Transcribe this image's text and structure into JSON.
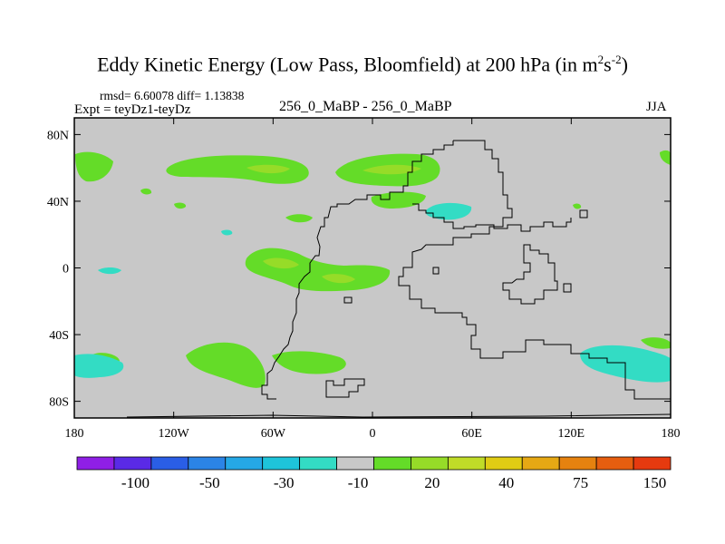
{
  "title": {
    "main": "Eddy Kinetic Energy (Low Pass, Bloomfield) at 200 hPa (in m",
    "sup1": "2",
    "mid": "s",
    "sup2": "-2",
    "close": ")"
  },
  "stats": "rmsd= 6.60078 diff= 1.13838",
  "expt_label": "Expt = teyDz1-teyDz",
  "subtitle": "256_0_MaBP - 256_0_MaBP",
  "season": "JJA",
  "chart_data": {
    "type": "contour-map",
    "title": "Eddy Kinetic Energy (Low Pass, Bloomfield) at 200 hPa (in m2s-2)",
    "xlim": [
      -180,
      180
    ],
    "ylim": [
      -90,
      90
    ],
    "x_ticks": [
      {
        "value": -180,
        "label": "180"
      },
      {
        "value": -120,
        "label": "120W"
      },
      {
        "value": -60,
        "label": "60W"
      },
      {
        "value": 0,
        "label": "0"
      },
      {
        "value": 60,
        "label": "60E"
      },
      {
        "value": 120,
        "label": "120E"
      },
      {
        "value": 180,
        "label": "180"
      }
    ],
    "y_ticks": [
      {
        "value": 80,
        "label": "80N"
      },
      {
        "value": 40,
        "label": "40N"
      },
      {
        "value": 0,
        "label": "0"
      },
      {
        "value": -40,
        "label": "40S"
      },
      {
        "value": -80,
        "label": "80S"
      }
    ],
    "colorbar": {
      "colors": [
        "#8f1fe6",
        "#5a2ae6",
        "#2a5ee6",
        "#2b84e6",
        "#25a8e6",
        "#1ec4da",
        "#33dcc4",
        "#c8c8c8",
        "#64dc28",
        "#96dc28",
        "#c0dc28",
        "#e0cc14",
        "#e6a814",
        "#e6820f",
        "#e65e0f",
        "#e63a0f"
      ],
      "labels": [
        "-100",
        "-50",
        "-30",
        "-10",
        "20",
        "40",
        "75",
        "150"
      ],
      "label_after_boundary": [
        2,
        4,
        6,
        8,
        10,
        12,
        14,
        16
      ]
    },
    "regions": [
      {
        "name": "nh-pacific-positive",
        "level": "10-20",
        "color": "#64dc28"
      },
      {
        "name": "nh-atlantic-positive",
        "level": "10-20",
        "color": "#64dc28"
      },
      {
        "name": "tropical-atlantic-positive",
        "level": "10-20",
        "color": "#64dc28"
      },
      {
        "name": "sh-pacific-positive",
        "level": "10-20",
        "color": "#64dc28"
      },
      {
        "name": "sh-indian-ocean-negative",
        "level": "-20 to -10",
        "color": "#33dcc4"
      },
      {
        "name": "sh-pacific-negative",
        "level": "-20 to -10",
        "color": "#33dcc4"
      }
    ]
  }
}
